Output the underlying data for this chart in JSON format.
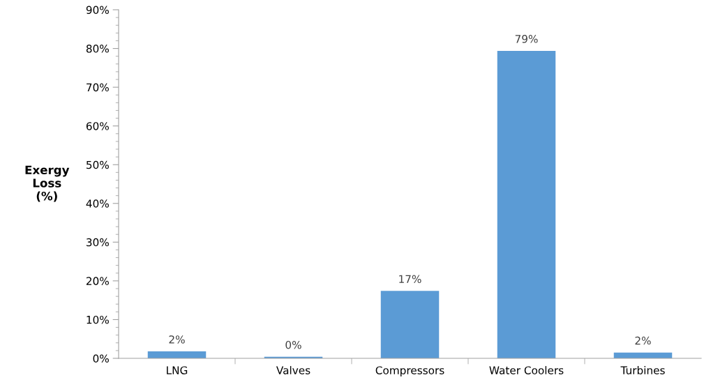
{
  "chart_data": {
    "type": "bar",
    "ylabel": "Exergy\nLoss\n(%)",
    "categories": [
      "LNG",
      "Valves",
      "Compressors",
      "Water Coolers",
      "Turbines"
    ],
    "values": [
      1.8,
      0.4,
      17.4,
      79.4,
      1.5
    ],
    "value_labels": [
      "2%",
      "0%",
      "17%",
      "79%",
      "2%"
    ],
    "color": "#5b9bd5",
    "ylim": [
      0,
      90
    ],
    "yticks": [
      {
        "value": 0,
        "label": "0%"
      },
      {
        "value": 10,
        "label": "10%"
      },
      {
        "value": 20,
        "label": "20%"
      },
      {
        "value": 30,
        "label": "30%"
      },
      {
        "value": 40,
        "label": "40%"
      },
      {
        "value": 50,
        "label": "50%"
      },
      {
        "value": 60,
        "label": "60%"
      },
      {
        "value": 70,
        "label": "70%"
      },
      {
        "value": 80,
        "label": "80%"
      },
      {
        "value": 90,
        "label": "90%"
      }
    ],
    "grid": false,
    "legend": false
  }
}
